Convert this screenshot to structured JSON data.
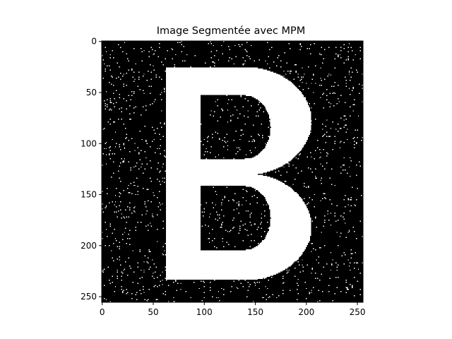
{
  "chart_data": {
    "type": "heatmap",
    "title": "Image Segmentée avec MPM",
    "xlabel": "",
    "ylabel": "",
    "image_size": [
      256,
      256
    ],
    "xlim": [
      -0.5,
      255.5
    ],
    "ylim": [
      255.5,
      -0.5
    ],
    "x_ticks": [
      0,
      50,
      100,
      150,
      200,
      250
    ],
    "y_ticks": [
      0,
      50,
      100,
      150,
      200,
      250
    ],
    "colormap": "gray",
    "colors": {
      "background": "#000000",
      "foreground": "#ffffff"
    },
    "content": "binary segmentation of a white letter B on a black background with scattered white noise pixels",
    "shape": {
      "stem": {
        "x": [
          63,
          96
        ],
        "y": [
          26,
          233
        ]
      },
      "upper_bowl": {
        "x_right": 205,
        "y": [
          26,
          130
        ]
      },
      "lower_bowl": {
        "x_right": 205,
        "y": [
          130,
          233
        ]
      },
      "upper_hole": {
        "x": [
          96,
          165
        ],
        "y": [
          53,
          115
        ]
      },
      "lower_hole": {
        "x": [
          96,
          165
        ],
        "y": [
          142,
          204
        ]
      }
    },
    "noise_density": 0.025
  }
}
